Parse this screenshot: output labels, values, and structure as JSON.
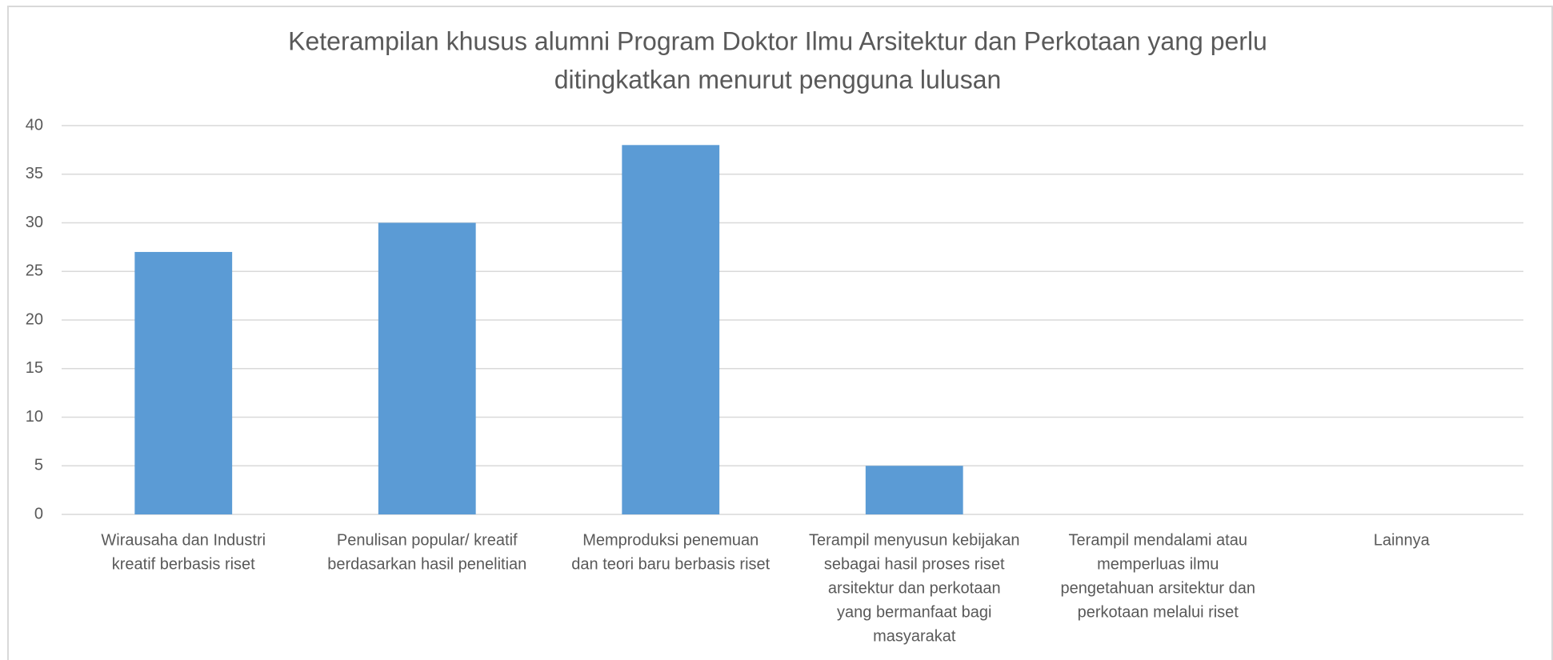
{
  "chart_data": {
    "type": "bar",
    "title": [
      "Keterampilan khusus alumni Program Doktor Ilmu Arsitektur dan Perkotaan yang perlu",
      "ditingkatkan menurut pengguna lulusan"
    ],
    "categories": [
      [
        "Wirausaha dan Industri",
        "kreatif berbasis riset"
      ],
      [
        "Penulisan popular/ kreatif",
        "berdasarkan hasil penelitian"
      ],
      [
        "Memproduksi penemuan",
        "dan teori baru berbasis riset"
      ],
      [
        "Terampil menyusun kebijakan",
        "sebagai hasil proses riset",
        "arsitektur dan perkotaan",
        "yang bermanfaat bagi",
        "masyarakat"
      ],
      [
        "Terampil mendalami  atau",
        "memperluas ilmu",
        "pengetahuan  arsitektur dan",
        "perkotaan melalui riset"
      ],
      [
        "Lainnya"
      ]
    ],
    "values": [
      27,
      30,
      38,
      5,
      0,
      0
    ],
    "color": "#5b9bd5",
    "ylim": [
      0,
      40
    ],
    "yticks": [
      0,
      5,
      10,
      15,
      20,
      25,
      30,
      35,
      40
    ],
    "grid": true
  }
}
